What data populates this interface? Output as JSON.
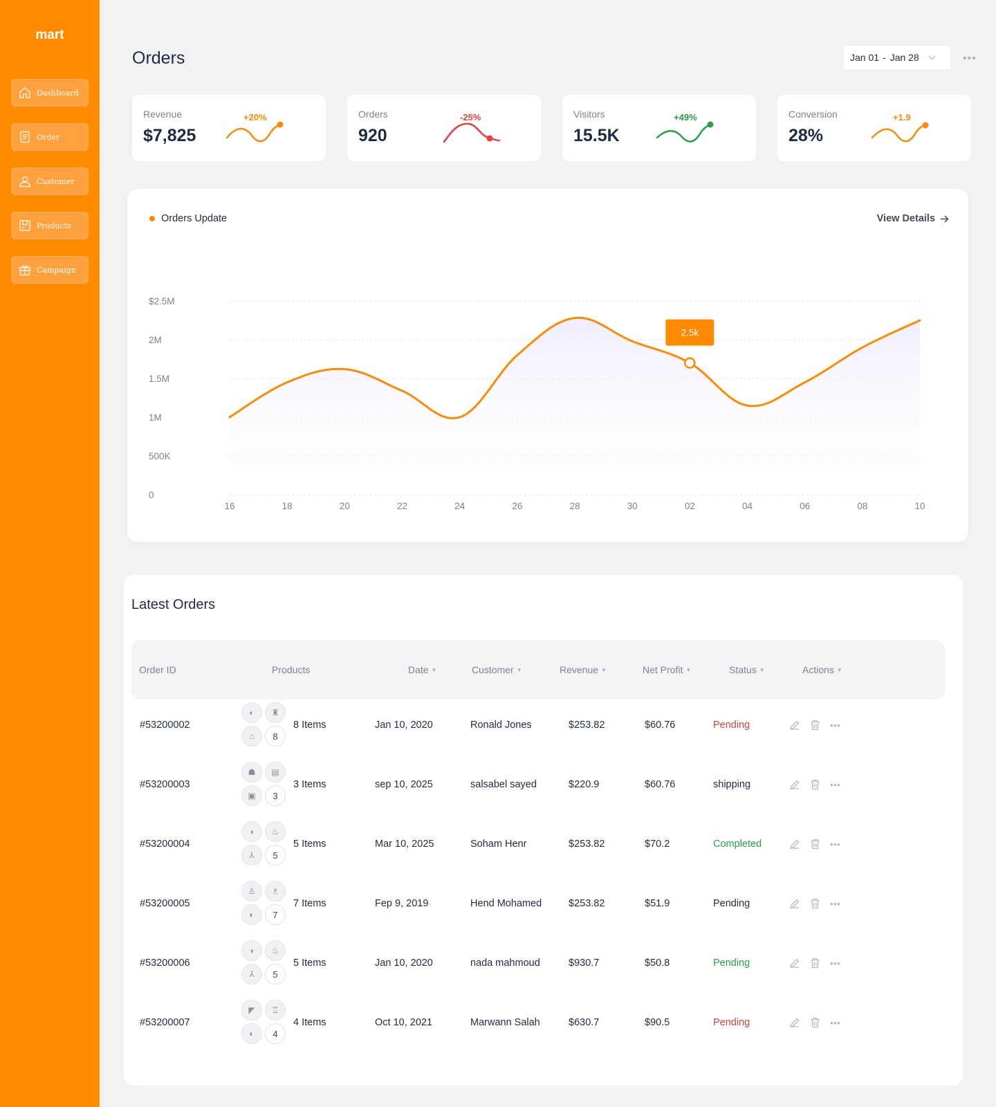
{
  "app": {
    "logo": "mart"
  },
  "sidebar": {
    "items": [
      {
        "label": "Dashboard",
        "icon": "home-icon"
      },
      {
        "label": "Order",
        "icon": "document-icon"
      },
      {
        "label": "Customer",
        "icon": "user-icon"
      },
      {
        "label": "Products",
        "icon": "box-icon"
      },
      {
        "label": "Campaign",
        "icon": "gift-icon"
      }
    ]
  },
  "header": {
    "title": "Orders",
    "date_from": "Jan 01",
    "date_sep": "-",
    "date_to": "Jan 28",
    "more_label": "•••"
  },
  "stats": [
    {
      "label": "Revenue",
      "value": "$7,825",
      "change": "+20%",
      "color": "#ff8a00"
    },
    {
      "label": "Orders",
      "value": "920",
      "change": "-25%",
      "color": "#f03c3c"
    },
    {
      "label": "Visitors",
      "value": "15.5K",
      "change": "+49%",
      "color": "#27a04a"
    },
    {
      "label": "Conversion",
      "value": "28%",
      "change": "+1.9",
      "color": "#ff8a00"
    }
  ],
  "chart_panel": {
    "title": "Orders Update",
    "view_details": "View Details",
    "tooltip": "2.5k"
  },
  "chart_data": {
    "type": "area",
    "x": [
      "16",
      "18",
      "20",
      "22",
      "24",
      "26",
      "28",
      "30",
      "02",
      "04",
      "06",
      "08",
      "10"
    ],
    "y_ticks": [
      "0",
      "500K",
      "1M",
      "1.5M",
      "2M",
      "$2.5M"
    ],
    "ylim": [
      0,
      2500000
    ],
    "series": [
      {
        "values": [
          1000000,
          1450000,
          1620000,
          1340000,
          1000000,
          1800000,
          2280000,
          1980000,
          1700000,
          1150000,
          1450000,
          1900000,
          2250000
        ]
      }
    ],
    "highlight_index": 8,
    "grid": true,
    "color": "#ff8a00"
  },
  "orders": {
    "title": "Latest Orders",
    "columns": [
      "Order ID",
      "Products",
      "Date",
      "Customer",
      "Revenue",
      "Net Profit",
      "Status",
      "Actions"
    ],
    "rows": [
      {
        "id": "#53200002",
        "items": "8 Items",
        "count": "8",
        "date": "Jan 10, 2020",
        "customer": "Ronald Jones",
        "revenue": "$253.82",
        "profit": "$60.76",
        "status": "Pending",
        "status_color": "#e2403a"
      },
      {
        "id": "#53200003",
        "items": "3 Items",
        "count": "3",
        "date": "sep 10, 2025",
        "customer": "salsabel sayed",
        "revenue": "$220.9",
        "profit": "$60.76",
        "status": "shipping",
        "status_color": "#1f2a44"
      },
      {
        "id": "#53200004",
        "items": "5 Items",
        "count": "5",
        "date": "Mar 10, 2025",
        "customer": "Soham Henr",
        "revenue": "$253.82",
        "profit": "$70.2",
        "status": "Completed",
        "status_color": "#27a04a"
      },
      {
        "id": "#53200005",
        "items": "7 Items",
        "count": "7",
        "date": "Fep 9, 2019",
        "customer": "Hend Mohamed",
        "revenue": "$253.82",
        "profit": "$51.9",
        "status": "Pending",
        "status_color": "#1f2a44"
      },
      {
        "id": "#53200006",
        "items": "5 Items",
        "count": "5",
        "date": "Jan 10, 2020",
        "customer": "nada mahmoud",
        "revenue": "$930.7",
        "profit": "$50.8",
        "status": "Pending",
        "status_color": "#27a04a"
      },
      {
        "id": "#53200007",
        "items": "4 Items",
        "count": "4",
        "date": "Oct 10, 2021",
        "customer": "Marwann Salah",
        "revenue": "$630.7",
        "profit": "$90.5",
        "status": "Pending",
        "status_color": "#e2403a"
      }
    ]
  }
}
